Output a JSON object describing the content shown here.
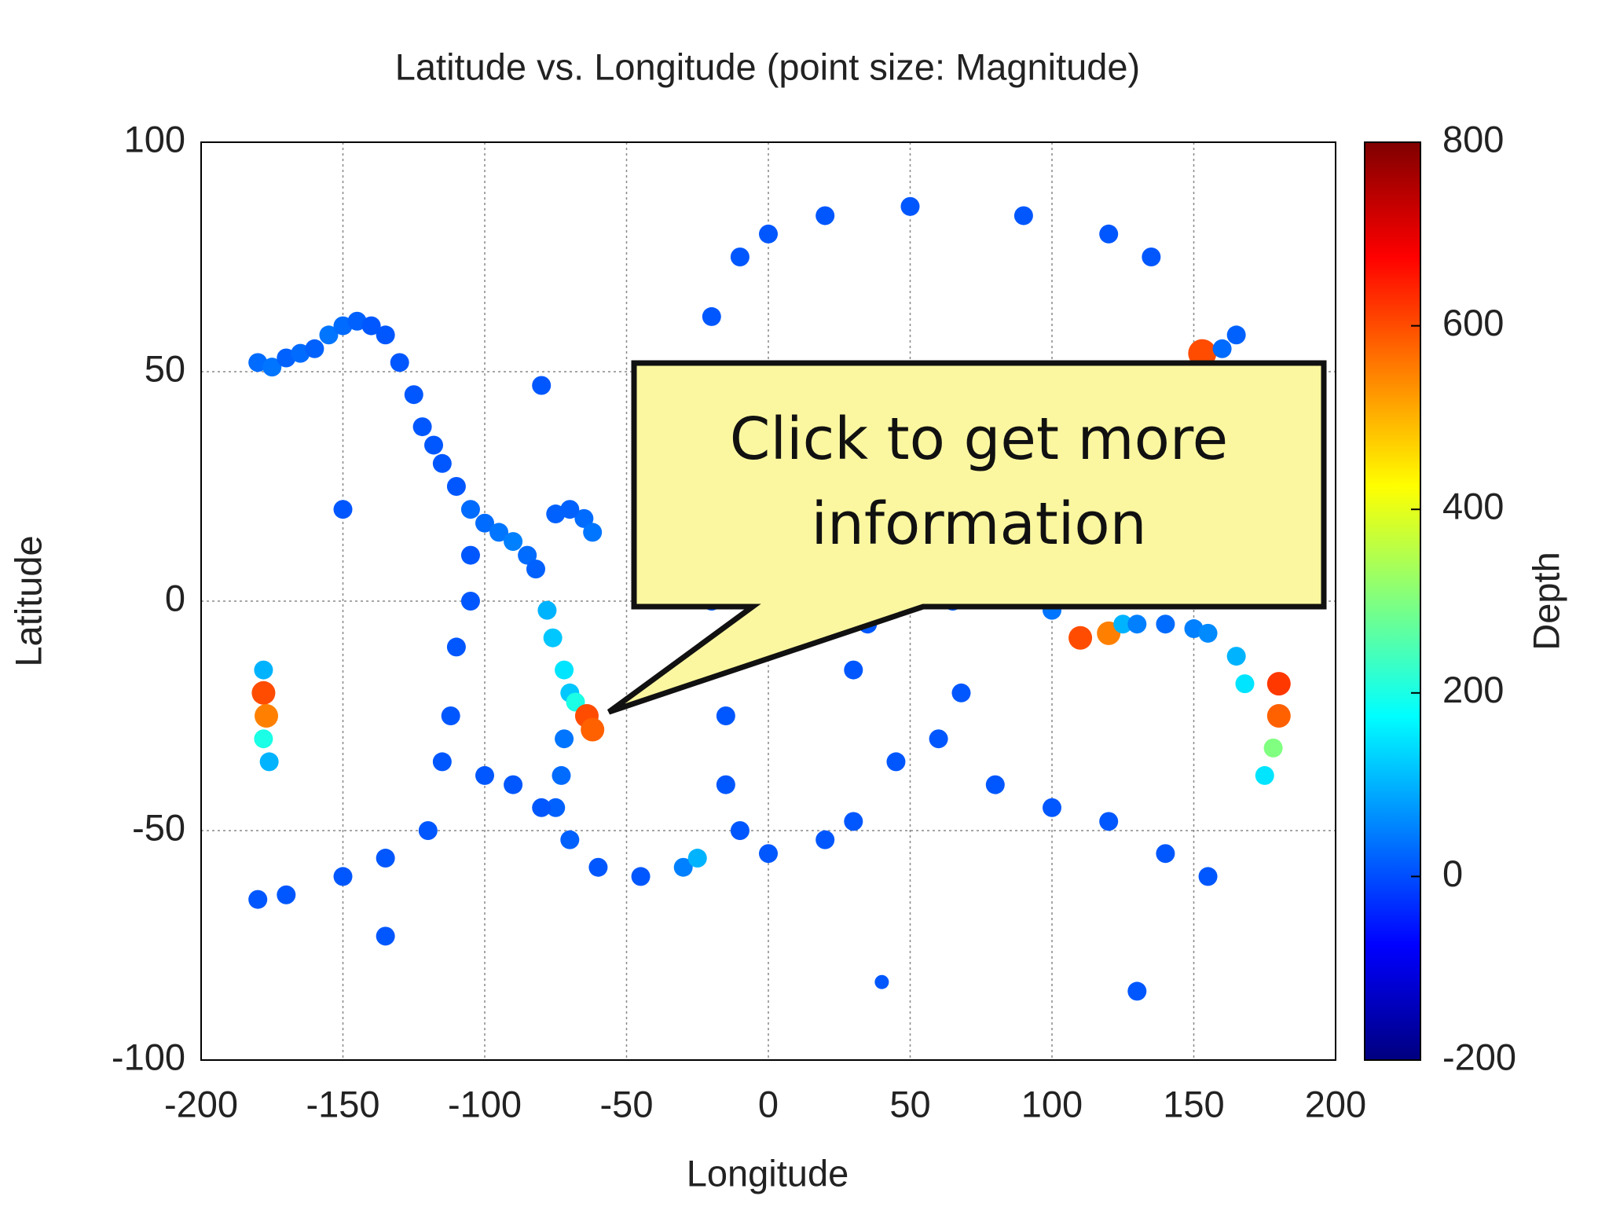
{
  "chart_data": {
    "type": "scatter",
    "title": "Latitude vs. Longitude (point size: Magnitude)",
    "x_label": "Longitude",
    "y_label": "Latitude",
    "colorbar_label": "Depth",
    "annotation": "Click to get more information",
    "xlim": [
      -200,
      200
    ],
    "xticks": [
      -200,
      -150,
      -100,
      -50,
      0,
      50,
      100,
      150,
      200
    ],
    "ylim": [
      -100,
      100
    ],
    "yticks": [
      -100,
      -50,
      0,
      50,
      100
    ],
    "clim": [
      -200,
      800
    ],
    "cticks": [
      -200,
      0,
      200,
      400,
      600,
      800
    ],
    "colormap": "jet",
    "grid": true,
    "x": [
      -180,
      -175,
      -170,
      -165,
      -160,
      -155,
      -150,
      -145,
      -140,
      -135,
      -130,
      -125,
      -122,
      -118,
      -115,
      -110,
      -105,
      -100,
      -95,
      -90,
      -85,
      -82,
      -75,
      -65,
      -62,
      -70,
      -78,
      -76,
      -72,
      -70,
      -68,
      -64,
      -62,
      -72,
      -73,
      -75,
      -70,
      -60,
      -45,
      -30,
      -25,
      -30,
      -20,
      -35,
      -40,
      -45,
      -40,
      -20,
      -15,
      -15,
      -15,
      -10,
      0,
      20,
      30,
      -10,
      0,
      20,
      50,
      90,
      120,
      135,
      -105,
      -105,
      -110,
      -112,
      -115,
      -100,
      -90,
      -80,
      -120,
      -135,
      -150,
      -170,
      -180,
      60,
      68,
      65,
      60,
      45,
      80,
      100,
      120,
      140,
      155,
      35,
      30,
      40,
      -178,
      -178,
      -177,
      -178,
      -176,
      180,
      180,
      178,
      175,
      110,
      120,
      125,
      130,
      140,
      150,
      155,
      165,
      168,
      100,
      95,
      125,
      125,
      140,
      142,
      145,
      150,
      155,
      153,
      160,
      165,
      70,
      80,
      90,
      100,
      60,
      50,
      40,
      25,
      15,
      -80,
      -135,
      40,
      130,
      -150
    ],
    "y": [
      52,
      51,
      53,
      54,
      55,
      58,
      60,
      61,
      60,
      58,
      52,
      45,
      38,
      34,
      30,
      25,
      20,
      17,
      15,
      13,
      10,
      7,
      19,
      18,
      15,
      20,
      -2,
      -8,
      -15,
      -20,
      -22,
      -25,
      -28,
      -30,
      -38,
      -45,
      -52,
      -58,
      -60,
      -58,
      -56,
      50,
      62,
      40,
      30,
      20,
      10,
      0,
      -10,
      -25,
      -40,
      -50,
      -55,
      -52,
      -48,
      75,
      80,
      84,
      86,
      84,
      80,
      75,
      10,
      0,
      -10,
      -25,
      -35,
      -38,
      -40,
      -45,
      -50,
      -56,
      -60,
      -64,
      -65,
      -30,
      -20,
      0,
      10,
      -35,
      -40,
      -45,
      -48,
      -55,
      -60,
      -5,
      -15,
      10,
      -15,
      -20,
      -25,
      -30,
      -35,
      -18,
      -25,
      -32,
      -38,
      -8,
      -7,
      -5,
      -5,
      -5,
      -6,
      -7,
      -12,
      -18,
      -2,
      5,
      10,
      20,
      35,
      40,
      43,
      47,
      50,
      54,
      55,
      58,
      38,
      30,
      28,
      25,
      28,
      35,
      38,
      38,
      40,
      47,
      -73,
      -83,
      -85,
      20
    ],
    "size": [
      5,
      5,
      5,
      5,
      5,
      5,
      5,
      5,
      5,
      5,
      5,
      5,
      5,
      5,
      5,
      5,
      5,
      5,
      5,
      5,
      5,
      5,
      5,
      5,
      5,
      5,
      5,
      5,
      5,
      5,
      5,
      5.5,
      5.5,
      5,
      5,
      5,
      5,
      5,
      5,
      5,
      5,
      5,
      5,
      5,
      5,
      5,
      5,
      5,
      5,
      5,
      5,
      5,
      5,
      5,
      5,
      5,
      5,
      5,
      5,
      5,
      5,
      5,
      5,
      5,
      5,
      5,
      5,
      5,
      5,
      5,
      5,
      5,
      5,
      5,
      5,
      5,
      5,
      5,
      5,
      5,
      5,
      5,
      5,
      5,
      5,
      5,
      5,
      5,
      5,
      5.5,
      5.5,
      5,
      5,
      5.5,
      5.5,
      5,
      5,
      5.5,
      5.5,
      5,
      5,
      5,
      5,
      5,
      5,
      5,
      5,
      5,
      5,
      5,
      5,
      5,
      5,
      5,
      5,
      6,
      5,
      5,
      5,
      5,
      5,
      5,
      5,
      5,
      5,
      5,
      5,
      5,
      5,
      4.5,
      5,
      5
    ],
    "depth": [
      30,
      40,
      20,
      30,
      20,
      40,
      30,
      20,
      10,
      10,
      10,
      10,
      10,
      10,
      10,
      10,
      30,
      30,
      40,
      50,
      30,
      20,
      20,
      30,
      40,
      20,
      100,
      120,
      150,
      120,
      200,
      600,
      580,
      40,
      30,
      20,
      20,
      10,
      10,
      50,
      100,
      10,
      10,
      10,
      10,
      10,
      10,
      10,
      10,
      10,
      10,
      10,
      10,
      10,
      10,
      10,
      10,
      10,
      10,
      10,
      10,
      10,
      10,
      10,
      10,
      10,
      10,
      10,
      10,
      10,
      10,
      10,
      10,
      10,
      10,
      10,
      10,
      10,
      10,
      10,
      10,
      10,
      10,
      10,
      10,
      10,
      10,
      10,
      100,
      600,
      550,
      200,
      100,
      620,
      580,
      300,
      150,
      600,
      550,
      100,
      50,
      30,
      50,
      60,
      100,
      150,
      40,
      30,
      60,
      50,
      40,
      30,
      40,
      50,
      40,
      600,
      30,
      20,
      30,
      20,
      20,
      20,
      30,
      20,
      10,
      20,
      20,
      10,
      10,
      10,
      10,
      10
    ]
  }
}
